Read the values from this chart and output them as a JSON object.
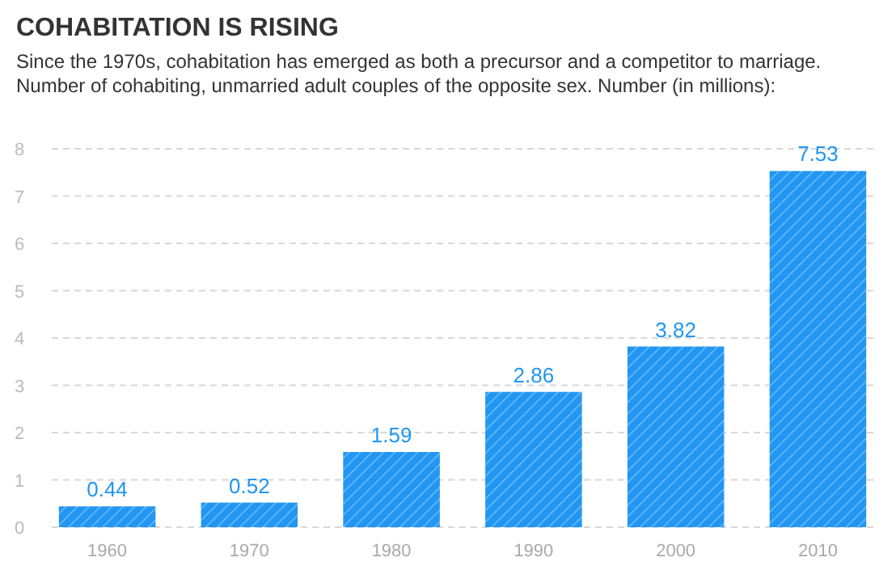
{
  "chart_data": {
    "type": "bar",
    "title": "COHABITATION IS RISING",
    "subtitle": "Since the 1970s, cohabitation has emerged as both a precursor and a competitor to marriage. Number of cohabiting, unmarried adult couples of the opposite sex. Number (in millions):",
    "categories": [
      "1960",
      "1970",
      "1980",
      "1990",
      "2000",
      "2010"
    ],
    "values": [
      0.44,
      0.52,
      1.59,
      2.86,
      3.82,
      7.53
    ],
    "color": "#2196f3",
    "ylim": [
      0,
      8
    ],
    "yticks": [
      0,
      1,
      2,
      3,
      4,
      5,
      6,
      7,
      8
    ],
    "grid": "y",
    "data_labels": true
  }
}
